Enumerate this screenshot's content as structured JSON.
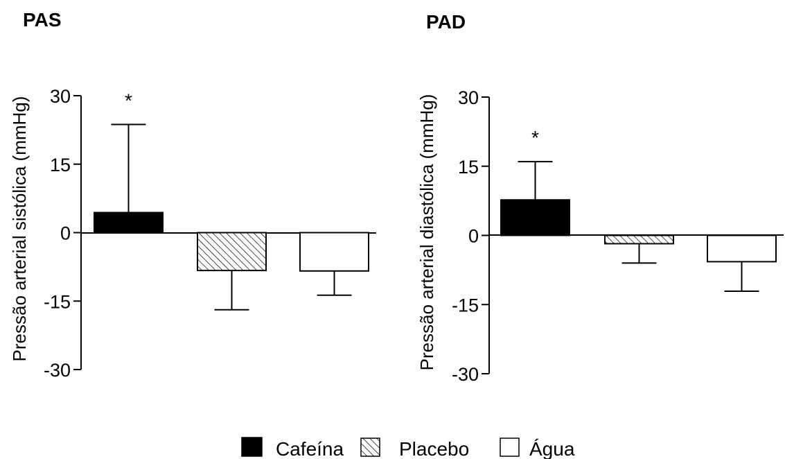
{
  "chart_data": [
    {
      "type": "bar",
      "title": "PAS",
      "ylabel": "Pressão arterial sistólica (mmHg)",
      "ylim": [
        -30,
        30
      ],
      "yticks": [
        "30",
        "15",
        "0",
        "-15",
        "-30"
      ],
      "categories": [
        "Cafeína",
        "Placebo",
        "Água"
      ],
      "values": [
        4.4,
        -8.3,
        -8.4
      ],
      "errors": [
        19.3,
        8.6,
        5.3
      ],
      "error_direction": "away-from-zero",
      "significance": [
        "*",
        "",
        ""
      ],
      "grid": false
    },
    {
      "type": "bar",
      "title": "PAD",
      "ylabel": "Pressão arterial diastólica (mmHg)",
      "ylim": [
        -30,
        30
      ],
      "yticks": [
        "30",
        "15",
        "0",
        "-15",
        "-30"
      ],
      "categories": [
        "Cafeína",
        "Placebo",
        "Água"
      ],
      "values": [
        7.7,
        -1.8,
        -5.7
      ],
      "errors": [
        8.3,
        4.2,
        6.4
      ],
      "error_direction": "away-from-zero",
      "significance": [
        "*",
        "",
        ""
      ],
      "grid": false
    }
  ],
  "legend": {
    "placement": "bottom-center",
    "items": [
      {
        "label": "Cafeína",
        "fill": "solid",
        "color": "#000000"
      },
      {
        "label": "Placebo",
        "fill": "hatched",
        "color": "#000000"
      },
      {
        "label": "Água",
        "fill": "empty",
        "color": "#ffffff"
      }
    ]
  }
}
